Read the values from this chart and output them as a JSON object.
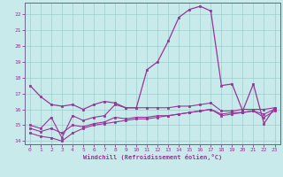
{
  "xlabel": "Windchill (Refroidissement éolien,°C)",
  "background_color": "#c8eaea",
  "grid_color": "#a0cccc",
  "line_color": "#993399",
  "spine_color": "#666688",
  "xlim": [
    -0.5,
    23.5
  ],
  "ylim": [
    13.8,
    22.7
  ],
  "xticks": [
    0,
    1,
    2,
    3,
    4,
    5,
    6,
    7,
    8,
    9,
    10,
    11,
    12,
    13,
    14,
    15,
    16,
    17,
    18,
    19,
    20,
    21,
    22,
    23
  ],
  "yticks": [
    14,
    15,
    16,
    17,
    18,
    19,
    20,
    21,
    22
  ],
  "line1_y": [
    17.5,
    16.8,
    16.3,
    16.2,
    16.3,
    16.0,
    16.3,
    16.5,
    16.4,
    16.1,
    16.1,
    18.5,
    19.0,
    20.3,
    21.8,
    22.3,
    22.5,
    22.2,
    17.5,
    17.6,
    15.9,
    17.6,
    15.1,
    16.1
  ],
  "line2_y": [
    15.0,
    14.8,
    15.5,
    14.2,
    15.6,
    15.3,
    15.5,
    15.6,
    16.3,
    16.1,
    16.1,
    16.1,
    16.1,
    16.1,
    16.2,
    16.2,
    16.3,
    16.4,
    15.9,
    15.9,
    16.0,
    16.0,
    16.0,
    16.1
  ],
  "line3_y": [
    14.8,
    14.6,
    14.8,
    14.5,
    15.0,
    14.9,
    15.1,
    15.2,
    15.5,
    15.4,
    15.5,
    15.5,
    15.6,
    15.6,
    15.7,
    15.8,
    15.9,
    16.0,
    15.7,
    15.8,
    15.8,
    15.9,
    15.7,
    16.0
  ],
  "line4_y": [
    14.5,
    14.3,
    14.2,
    14.0,
    14.5,
    14.8,
    15.0,
    15.1,
    15.2,
    15.3,
    15.4,
    15.4,
    15.5,
    15.6,
    15.7,
    15.8,
    15.9,
    16.0,
    15.6,
    15.7,
    15.8,
    15.9,
    15.5,
    15.9
  ]
}
